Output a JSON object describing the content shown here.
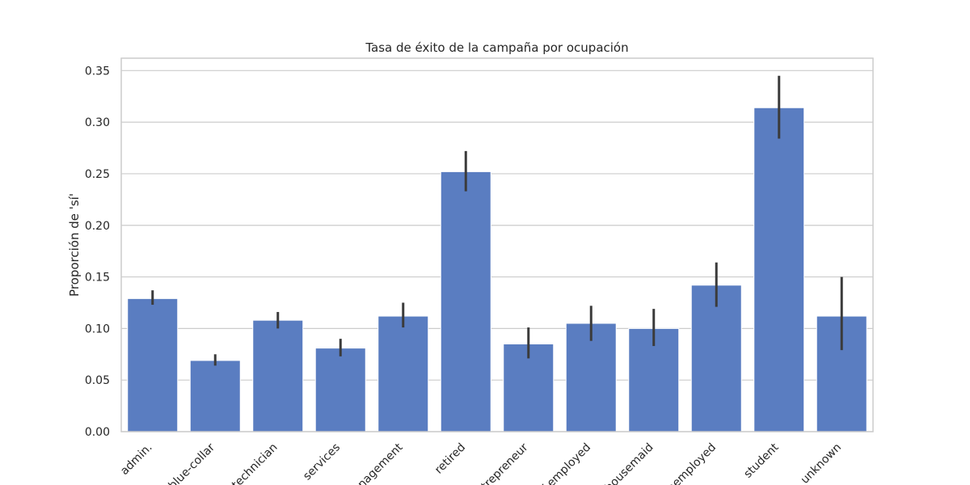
{
  "chart_data": {
    "type": "bar",
    "title": "Tasa de éxito de la campaña por ocupación",
    "xlabel": "",
    "ylabel": "Proporción de 'sí'",
    "ylim": [
      0,
      0.362
    ],
    "yticks": [
      "0.00",
      "0.05",
      "0.10",
      "0.15",
      "0.20",
      "0.25",
      "0.30",
      "0.35"
    ],
    "grid": true,
    "categories": [
      "admin.",
      "blue-collar",
      "technician",
      "services",
      "management",
      "retired",
      "entrepreneur",
      "self-employed",
      "housemaid",
      "unemployed",
      "student",
      "unknown"
    ],
    "values": [
      0.129,
      0.069,
      0.108,
      0.081,
      0.112,
      0.252,
      0.085,
      0.105,
      0.1,
      0.142,
      0.314,
      0.112
    ],
    "ci_low": [
      0.123,
      0.064,
      0.1,
      0.073,
      0.101,
      0.233,
      0.071,
      0.088,
      0.083,
      0.121,
      0.284,
      0.079
    ],
    "ci_high": [
      0.137,
      0.075,
      0.116,
      0.09,
      0.125,
      0.272,
      0.101,
      0.122,
      0.119,
      0.164,
      0.345,
      0.15
    ],
    "bar_color": "#5a7dc1",
    "errorbar_color": "#3b3b3b"
  }
}
